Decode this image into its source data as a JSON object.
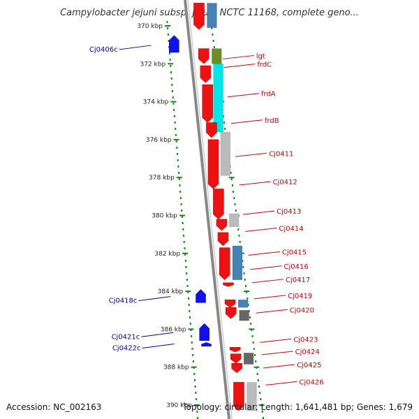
{
  "header": {
    "title": "Campylobacter jejuni subsp. jejuni NCTC 11168, complete geno..."
  },
  "footer": {
    "accession": "Accession: NC_002163",
    "summary": "Topology: circular; Length: 1,641,481 bp; Genes: 1,679"
  },
  "ruler": {
    "unit": "kbp",
    "ticks": [
      {
        "label": "370 kbp",
        "kbp": 370
      },
      {
        "label": "372 kbp",
        "kbp": 372
      },
      {
        "label": "374 kbp",
        "kbp": 374
      },
      {
        "label": "376 kbp",
        "kbp": 376
      },
      {
        "label": "378 kbp",
        "kbp": 378
      },
      {
        "label": "380 kbp",
        "kbp": 380
      },
      {
        "label": "382 kbp",
        "kbp": 382
      },
      {
        "label": "384 kbp",
        "kbp": 384
      },
      {
        "label": "386 kbp",
        "kbp": 386
      },
      {
        "label": "388 kbp",
        "kbp": 388
      },
      {
        "label": "390 kbp",
        "kbp": 390
      }
    ]
  },
  "colors": {
    "forward_gene": "#ee1111",
    "reverse_gene": "#1111ee",
    "label_forward": "#cc0000",
    "label_reverse": "#0000aa",
    "ruler_dots": "#118811",
    "backbone": "#888888",
    "cog_olive": "#6b8e23",
    "cog_cyan": "#00e5e5",
    "cog_gray": "#bbbbbb",
    "cog_steelblue": "#4682b4",
    "cog_darkgray": "#666666"
  },
  "forward_labels": [
    {
      "text": "lgt",
      "kbp": 371.6
    },
    {
      "text": "frdC",
      "kbp": 372.05
    },
    {
      "text": "frdA",
      "kbp": 373.6
    },
    {
      "text": "frdB",
      "kbp": 375.0
    },
    {
      "text": "Cj0411",
      "kbp": 376.75
    },
    {
      "text": "Cj0412",
      "kbp": 378.25
    },
    {
      "text": "Cj0413",
      "kbp": 379.8
    },
    {
      "text": "Cj0414",
      "kbp": 380.7
    },
    {
      "text": "Cj0415",
      "kbp": 381.95
    },
    {
      "text": "Cj0416",
      "kbp": 382.7
    },
    {
      "text": "Cj0417",
      "kbp": 383.4
    },
    {
      "text": "Cj0419",
      "kbp": 384.25
    },
    {
      "text": "Cj0420",
      "kbp": 385.0
    },
    {
      "text": "Cj0423",
      "kbp": 386.55
    },
    {
      "text": "Cj0424",
      "kbp": 387.2
    },
    {
      "text": "Cj0425",
      "kbp": 387.9
    },
    {
      "text": "Cj0426",
      "kbp": 388.8
    }
  ],
  "reverse_labels": [
    {
      "text": "Cj0406c",
      "kbp": 371.25
    },
    {
      "text": "Cj0418c",
      "kbp": 384.5
    },
    {
      "text": "Cj0421c",
      "kbp": 386.4
    },
    {
      "text": "Cj0422c",
      "kbp": 387.0
    }
  ]
}
